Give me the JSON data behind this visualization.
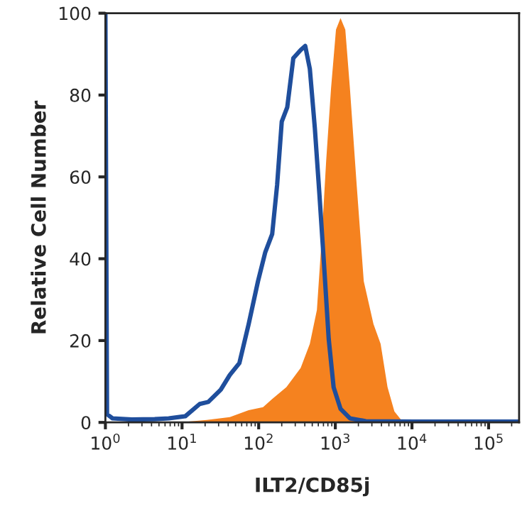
{
  "chart_data": {
    "type": "line",
    "xlabel": "ILT2/CD85j",
    "ylabel": "Relative Cell Number",
    "log": "x",
    "xlim": [
      1,
      250000
    ],
    "ylim": [
      0,
      100
    ],
    "xticks": [
      {
        "value": 1,
        "label": "10$^{0}$"
      },
      {
        "value": 10,
        "label": "10$^{1}$"
      },
      {
        "value": 100,
        "label": "10$^{2}$"
      },
      {
        "value": 1000,
        "label": "10$^{3}$"
      },
      {
        "value": 10000,
        "label": "10$^{4}$"
      },
      {
        "value": 100000,
        "label": "10$^{5}$"
      }
    ],
    "yticks": [
      0,
      20,
      40,
      60,
      80,
      100
    ],
    "grid": false,
    "legend": false,
    "series": [
      {
        "type": "area",
        "color": "#f5821f",
        "x": [
          9,
          21,
          42,
          74,
          114,
          150,
          230,
          353,
          465,
          575,
          670,
          760,
          880,
          1020,
          1170,
          1350,
          1550,
          1900,
          2350,
          3150,
          3900,
          4800,
          5900,
          7400,
          9100
        ],
        "values": [
          0,
          0.6,
          1.3,
          3,
          3.7,
          5.7,
          8.6,
          13.3,
          19.2,
          27.5,
          46,
          64,
          81.7,
          96,
          98.8,
          96,
          81.7,
          58,
          34.5,
          24,
          19.2,
          8.6,
          2.7,
          0.4,
          0
        ]
      },
      {
        "color": "#1f4e9c",
        "x": [
          1,
          1.05,
          1.24,
          2.2,
          4.4,
          6.7,
          11,
          17,
          22,
          32,
          42,
          56,
          74,
          98,
          122,
          150,
          174,
          200,
          236,
          283,
          353,
          405,
          465,
          540,
          620,
          710,
          820,
          950,
          1170,
          1550,
          2500,
          10500,
          250000
        ],
        "values": [
          100,
          2,
          1,
          0.7,
          0.8,
          1,
          1.5,
          4.5,
          5,
          8,
          11.6,
          14.5,
          24,
          34.5,
          41.6,
          46,
          58,
          73.5,
          77,
          89,
          91,
          92,
          86.4,
          72,
          55.8,
          39,
          20.4,
          8.6,
          3.3,
          1,
          0.3,
          0.2,
          0.2
        ]
      }
    ]
  }
}
